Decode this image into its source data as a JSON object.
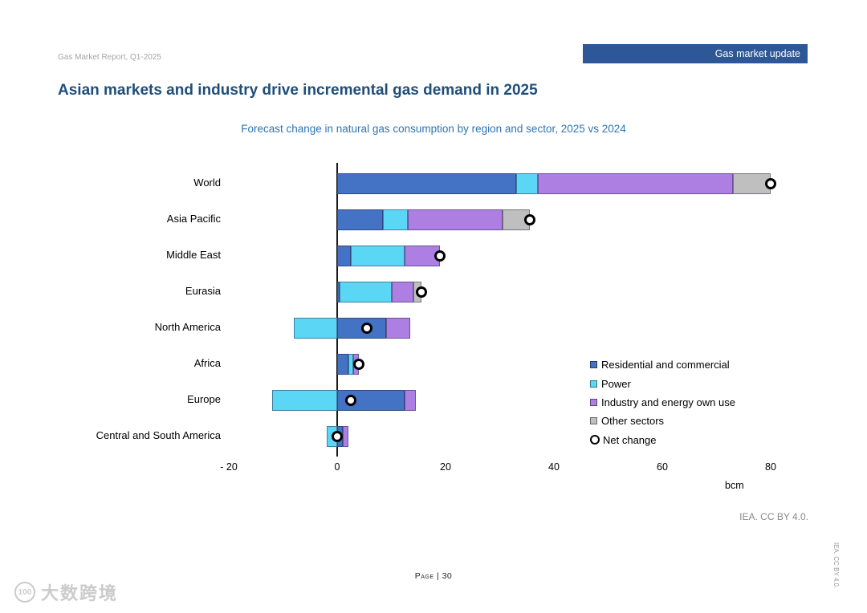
{
  "header": {
    "report_label": "Gas Market Report, Q1-2025",
    "banner_label": "Gas market update",
    "title": "Asian markets and industry drive incremental gas demand in 2025"
  },
  "colors": {
    "banner_bg": "#2D5796",
    "title_text": "#1F4E79",
    "subtitle_text": "#2E74B5",
    "residential": "#4472C4",
    "power": "#5CD6F5",
    "industry": "#AE7FE2",
    "other": "#BFBFBF",
    "net_marker_fill": "#FFFFFF",
    "net_marker_border": "#000000"
  },
  "chart_data": {
    "type": "bar",
    "orientation": "horizontal",
    "stacked": true,
    "title": "Forecast change in natural gas consumption by region and sector, 2025 vs 2024",
    "xlabel": "bcm",
    "xlim": [
      -20,
      83
    ],
    "x_ticks": [
      -20,
      0,
      20,
      40,
      60,
      80
    ],
    "x_tick_labels": [
      "- 20",
      "0",
      "20",
      "40",
      "60",
      "80"
    ],
    "grid": false,
    "legend_position": "right-inside",
    "categories": [
      "World",
      "Asia Pacific",
      "Middle East",
      "Eurasia",
      "North America",
      "Africa",
      "Europe",
      "Central and South America"
    ],
    "series": [
      {
        "name": "Residential and commercial",
        "color": "#4472C4",
        "values": [
          33,
          8.5,
          2.5,
          0.5,
          9,
          2,
          12.5,
          1
        ]
      },
      {
        "name": "Power",
        "color": "#5CD6F5",
        "values": [
          4,
          4.5,
          10,
          9.5,
          -8,
          1,
          -12,
          -2
        ]
      },
      {
        "name": "Industry and energy own use",
        "color": "#AE7FE2",
        "values": [
          36,
          17.5,
          6.5,
          4,
          4.5,
          1,
          2,
          1
        ]
      },
      {
        "name": "Other sectors",
        "color": "#BFBFBF",
        "values": [
          7,
          5,
          0,
          1.5,
          0,
          0,
          0,
          0
        ]
      }
    ],
    "net_change": {
      "name": "Net change",
      "marker": "open-circle",
      "values": [
        80,
        35.5,
        19,
        15.5,
        5.5,
        4,
        2.5,
        0
      ]
    }
  },
  "footer": {
    "attribution": "IEA. CC BY 4.0.",
    "side_vertical": "IEA. CC BY 4.0.",
    "page_label": "Page | 30"
  },
  "watermark": {
    "logo_text": "100",
    "text": "大数跨境"
  }
}
